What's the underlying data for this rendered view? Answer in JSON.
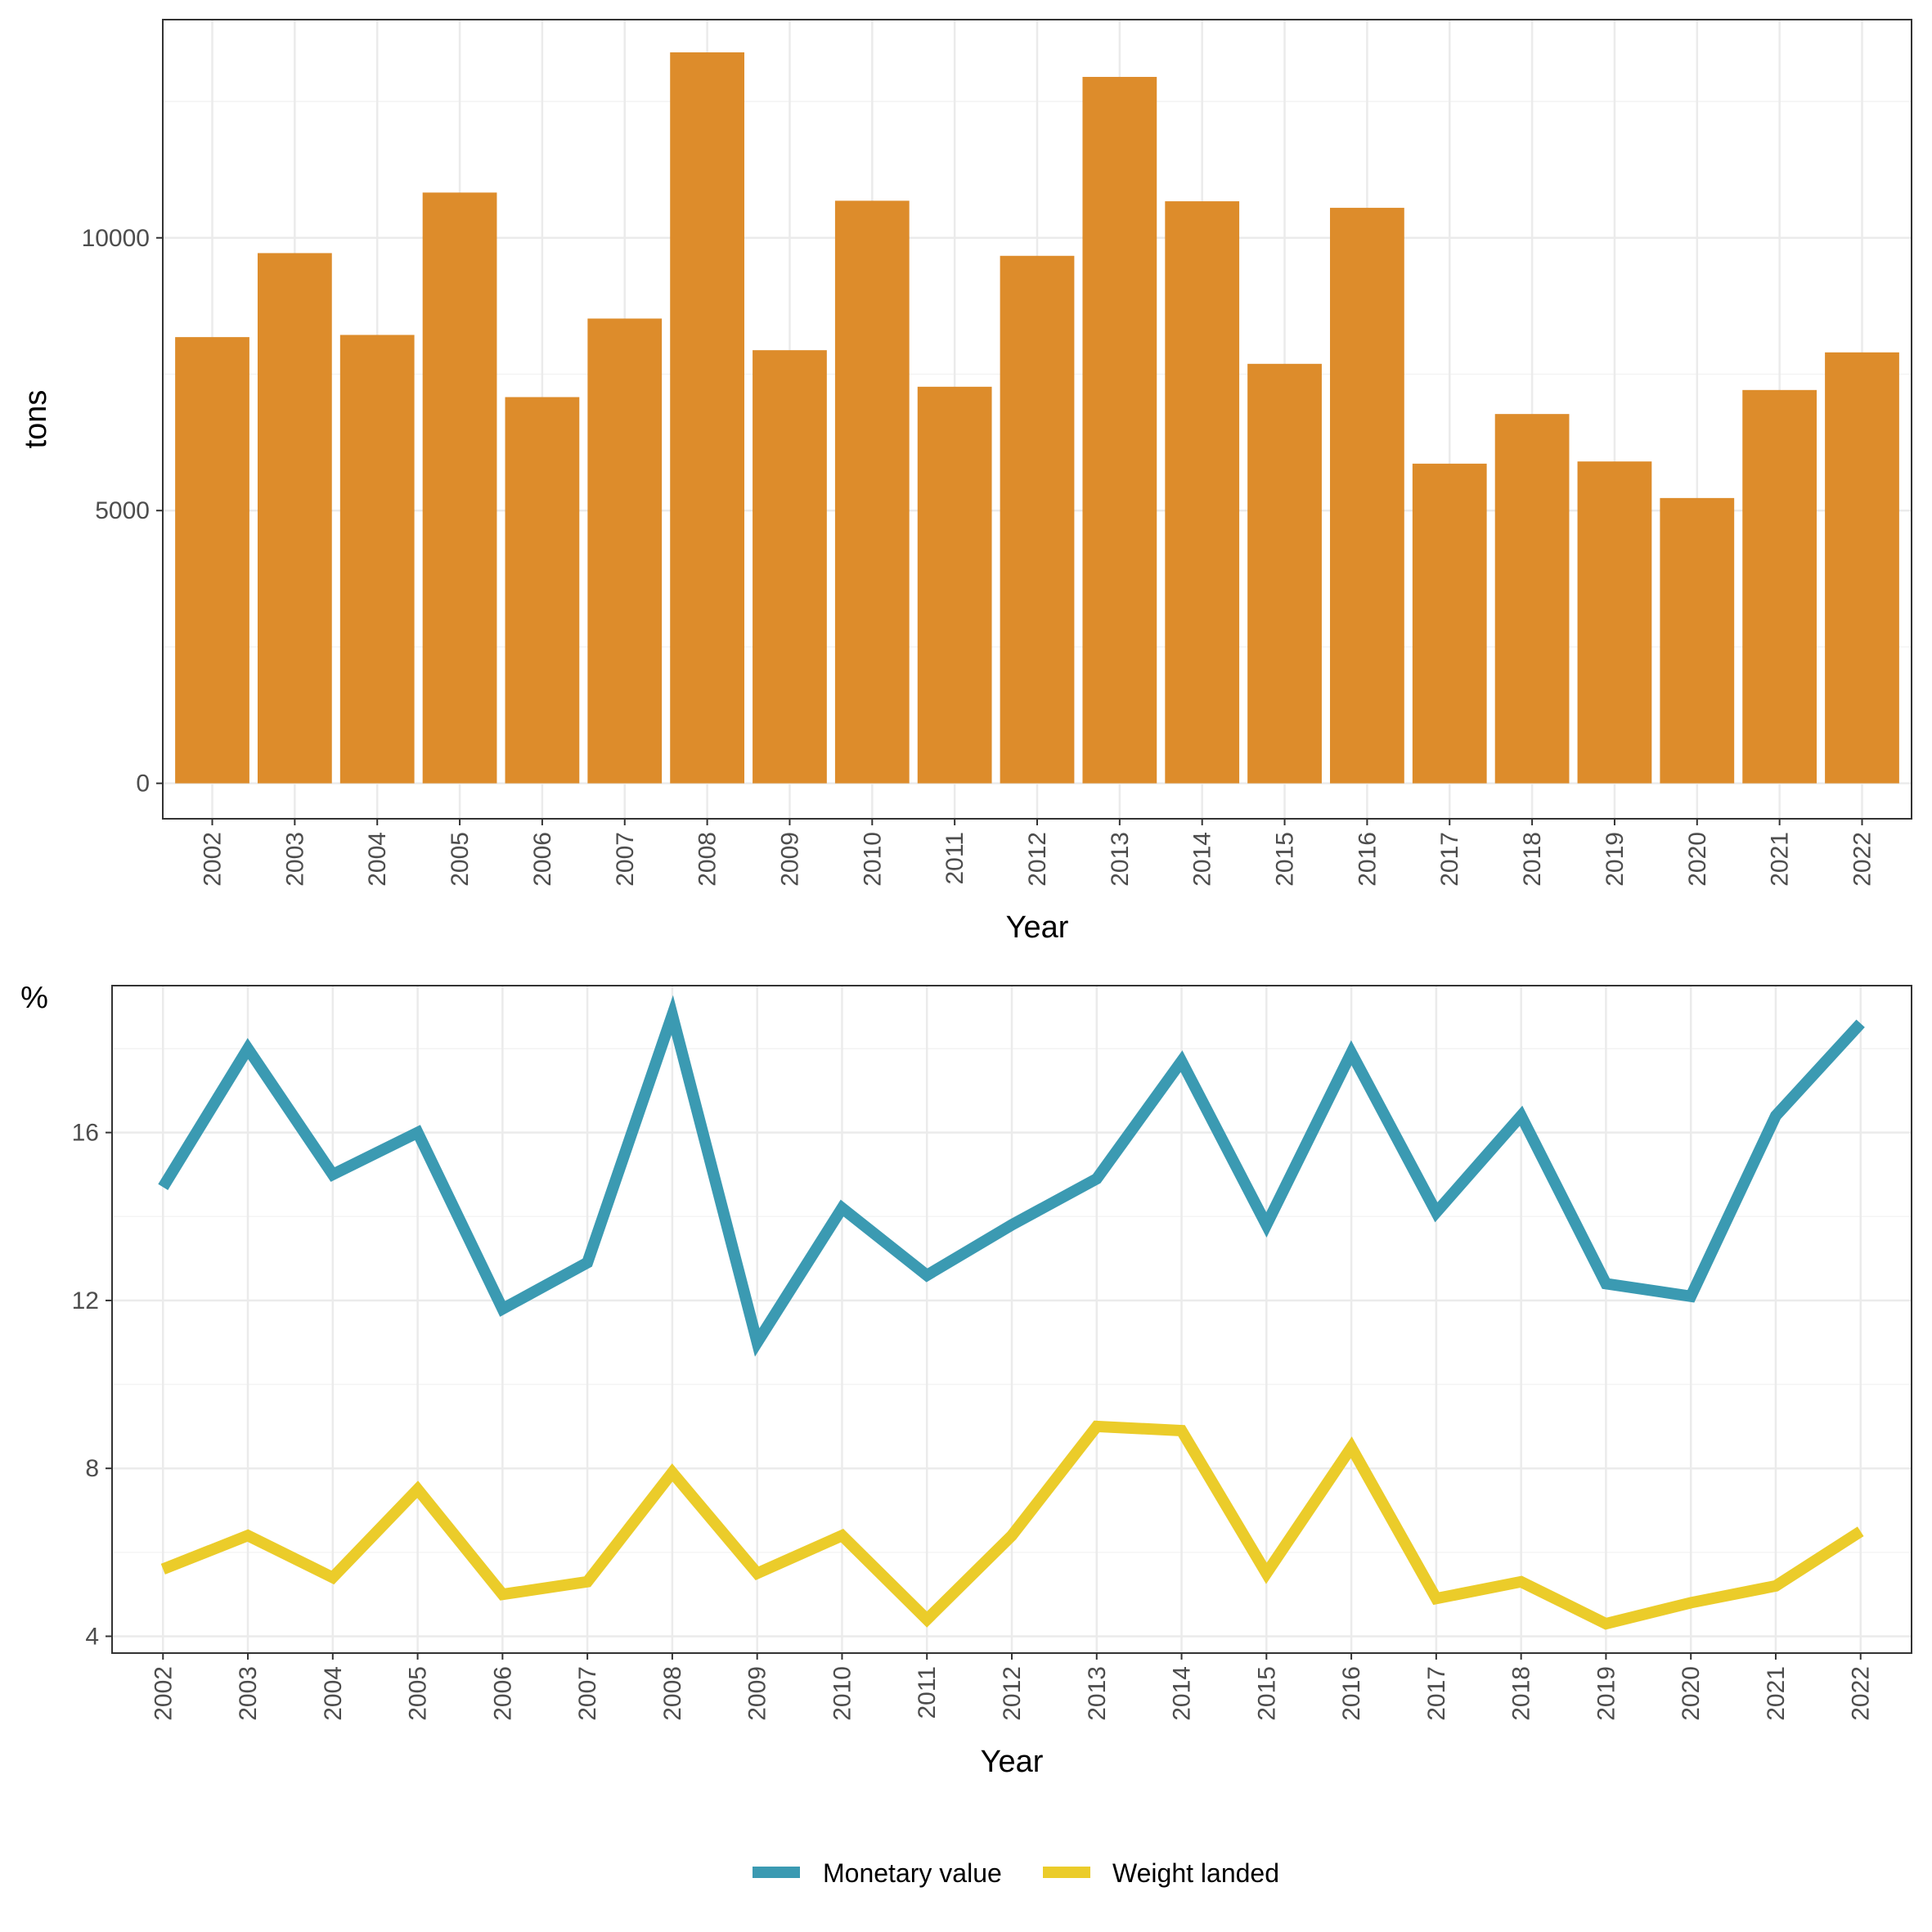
{
  "colors": {
    "bar": "#DD8C2B",
    "monetary": "#3B9AB2",
    "weight": "#EBCC2A",
    "grid_major": "#EBEBEB",
    "grid_minor": "#F4F4F4",
    "panel_border": "#333333"
  },
  "chart_data": [
    {
      "type": "bar",
      "xlabel": "Year",
      "ylabel": "tons",
      "ylim": [
        -650,
        14000
      ],
      "yticks": [
        0,
        5000,
        10000
      ],
      "grid": true,
      "categories": [
        "2002",
        "2003",
        "2004",
        "2005",
        "2006",
        "2007",
        "2008",
        "2009",
        "2010",
        "2011",
        "2012",
        "2013",
        "2014",
        "2015",
        "2016",
        "2017",
        "2018",
        "2019",
        "2020",
        "2021",
        "2022"
      ],
      "values": [
        8180,
        9720,
        8220,
        10830,
        7080,
        8520,
        13400,
        7940,
        10680,
        7270,
        9670,
        12950,
        10670,
        7690,
        10550,
        5860,
        6770,
        5900,
        5230,
        7210,
        7900
      ]
    },
    {
      "type": "line",
      "xlabel": "Year",
      "ylabel": "%",
      "ylim": [
        3.6,
        19.5
      ],
      "yticks": [
        4,
        8,
        12,
        16
      ],
      "grid": true,
      "legend_position": "bottom",
      "x": [
        "2002",
        "2003",
        "2004",
        "2005",
        "2006",
        "2007",
        "2008",
        "2009",
        "2010",
        "2011",
        "2012",
        "2013",
        "2014",
        "2015",
        "2016",
        "2017",
        "2018",
        "2019",
        "2020",
        "2021",
        "2022"
      ],
      "series": [
        {
          "name": "Monetary value",
          "values": [
            14.7,
            18.0,
            15.0,
            16.0,
            11.8,
            12.9,
            18.8,
            11.0,
            14.2,
            12.6,
            13.8,
            14.9,
            17.7,
            13.8,
            17.9,
            14.1,
            16.4,
            12.4,
            12.1,
            16.4,
            18.6
          ]
        },
        {
          "name": "Weight landed",
          "values": [
            5.6,
            6.4,
            5.4,
            7.5,
            5.0,
            5.3,
            7.9,
            5.5,
            6.4,
            4.4,
            6.4,
            9.0,
            8.9,
            5.5,
            8.5,
            4.9,
            5.3,
            4.3,
            4.8,
            5.2,
            6.5
          ]
        }
      ]
    }
  ]
}
